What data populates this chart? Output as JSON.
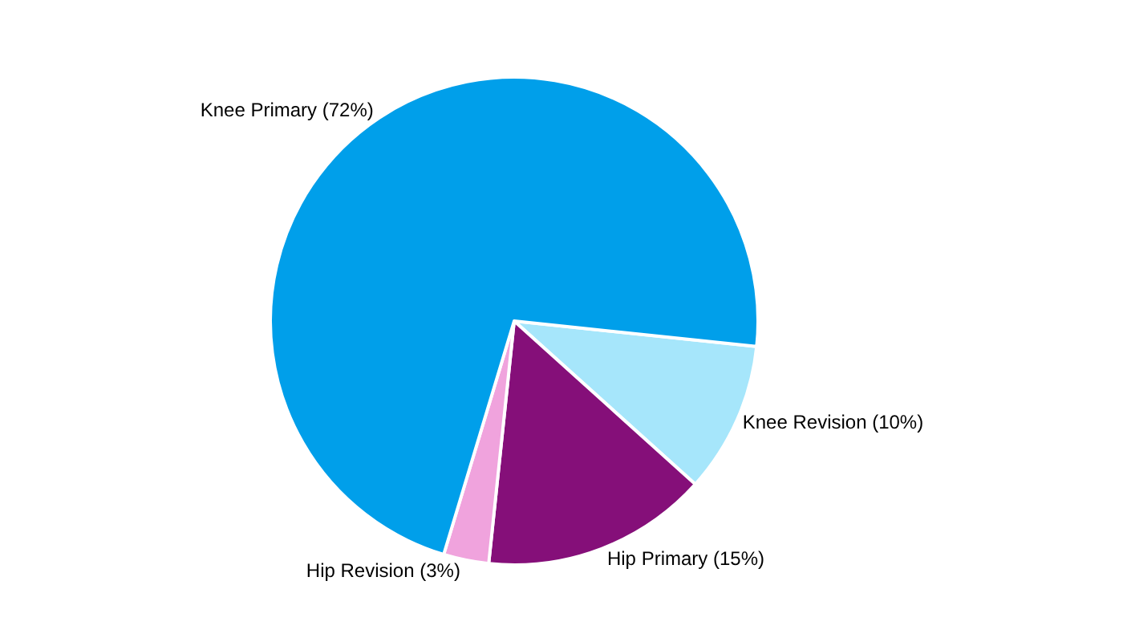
{
  "chart_data": {
    "type": "pie",
    "categories": [
      "Knee Revision (10%)",
      "Hip Primary (15%)",
      "Hip Revision (3%)",
      "Knee Primary (72%)"
    ],
    "values": [
      10,
      15,
      3,
      72
    ],
    "colors": [
      "#a6e6fb",
      "#850f79",
      "#f0a3dd",
      "#009fea"
    ],
    "legend": false
  }
}
